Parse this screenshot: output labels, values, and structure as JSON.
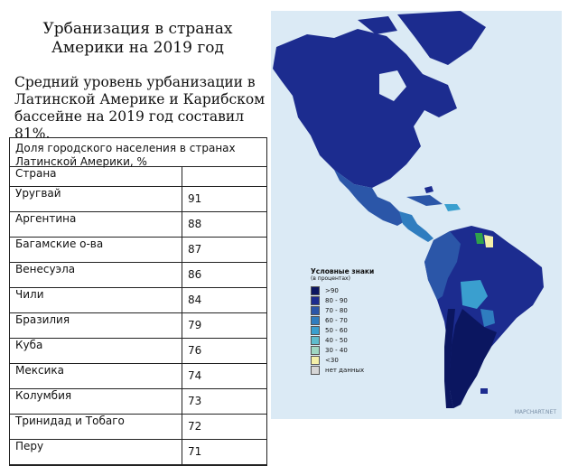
{
  "title": "Урбанизация в странах Америки на 2019 год",
  "intro": "Средний уровень урбанизации в Латинской Америке и Карибском бассейне на 2019 год составил 81%.",
  "table": {
    "caption": "Доля городского населения в странах Латинской Америки, %",
    "header": "Страна",
    "rows": [
      {
        "country": "Уругвай",
        "value": "91"
      },
      {
        "country": "Аргентина",
        "value": "88"
      },
      {
        "country": "Багамские о-ва",
        "value": "87"
      },
      {
        "country": "Венесуэла",
        "value": "86"
      },
      {
        "country": "Чили",
        "value": "84"
      },
      {
        "country": "Бразилия",
        "value": "79"
      },
      {
        "country": "Куба",
        "value": "76"
      },
      {
        "country": "Мексика",
        "value": "74"
      },
      {
        "country": "Колумбия",
        "value": "73"
      },
      {
        "country": "Тринидад и Тобаго",
        "value": "72"
      },
      {
        "country": "Перу",
        "value": "71"
      }
    ]
  },
  "map": {
    "legend_title": "Условные знаки",
    "legend_subtitle": "(в процентах)",
    "legend_items": [
      {
        "label": ">90",
        "color": "#0b1660"
      },
      {
        "label": "80 - 90",
        "color": "#1c2c8f"
      },
      {
        "label": "70 - 80",
        "color": "#2b56a8"
      },
      {
        "label": "60 - 70",
        "color": "#2f7dbf"
      },
      {
        "label": "50 - 60",
        "color": "#3a9fcf"
      },
      {
        "label": "40 - 50",
        "color": "#5fbccd"
      },
      {
        "label": "30 - 40",
        "color": "#9fd7c2"
      },
      {
        "label": "<30",
        "color": "#f4f0a8"
      },
      {
        "label": "нет данных",
        "color": "#d6d6d6"
      }
    ],
    "credit": "MAPCHART.NET",
    "colors": {
      "water": "#dbeaf5",
      "dark": "#0b1660",
      "main": "#1c2c8f",
      "mid": "#2b56a8",
      "light": "#3a9fcf",
      "pale": "#f4f0a8",
      "green": "#2fa34a"
    }
  }
}
